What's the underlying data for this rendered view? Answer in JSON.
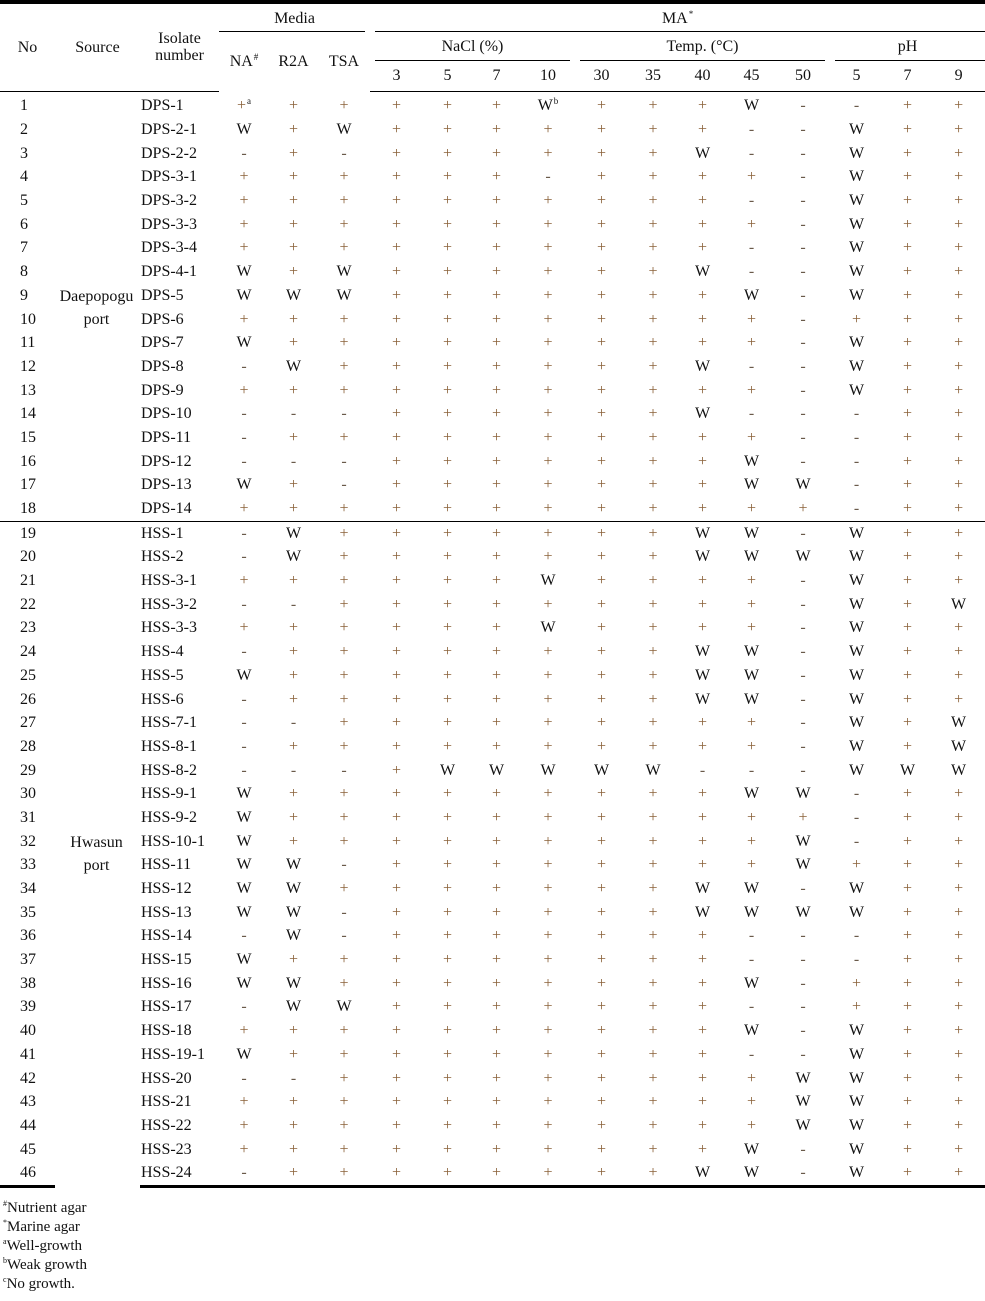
{
  "header": {
    "no": "No",
    "source": "Source",
    "isolate": "Isolate number",
    "media": "Media",
    "media_cols": [
      {
        "label": "NA",
        "sup": "#"
      },
      {
        "label": "R2A",
        "sup": ""
      },
      {
        "label": "TSA",
        "sup": ""
      }
    ],
    "ma": "MA",
    "ma_sup": "*",
    "nacl": "NaCl (%)",
    "nacl_cols": [
      "3",
      "5",
      "7",
      "10"
    ],
    "temp": "Temp. (°C)",
    "temp_cols": [
      "30",
      "35",
      "40",
      "45",
      "50"
    ],
    "ph": "pH",
    "ph_cols": [
      "5",
      "7",
      "9"
    ]
  },
  "groups": [
    {
      "source": [
        "Daepopogu",
        "port"
      ],
      "rows": [
        {
          "no": "1",
          "isolate": "DPS-1",
          "values": [
            "+",
            "+",
            "+",
            "+",
            "+",
            "+",
            "W",
            "+",
            "+",
            "+",
            "W",
            "-",
            "-",
            "+",
            "+"
          ],
          "sup": {
            "0": "a",
            "6": "b"
          }
        },
        {
          "no": "2",
          "isolate": "DPS-2-1",
          "values": [
            "W",
            "+",
            "W",
            "+",
            "+",
            "+",
            "+",
            "+",
            "+",
            "+",
            "-",
            "-",
            "W",
            "+",
            "+"
          ]
        },
        {
          "no": "3",
          "isolate": "DPS-2-2",
          "values": [
            "-",
            "+",
            "-",
            "+",
            "+",
            "+",
            "+",
            "+",
            "+",
            "W",
            "-",
            "-",
            "W",
            "+",
            "+"
          ]
        },
        {
          "no": "4",
          "isolate": "DPS-3-1",
          "values": [
            "+",
            "+",
            "+",
            "+",
            "+",
            "+",
            "-",
            "+",
            "+",
            "+",
            "+",
            "-",
            "W",
            "+",
            "+"
          ]
        },
        {
          "no": "5",
          "isolate": "DPS-3-2",
          "values": [
            "+",
            "+",
            "+",
            "+",
            "+",
            "+",
            "+",
            "+",
            "+",
            "+",
            "-",
            "-",
            "W",
            "+",
            "+"
          ]
        },
        {
          "no": "6",
          "isolate": "DPS-3-3",
          "values": [
            "+",
            "+",
            "+",
            "+",
            "+",
            "+",
            "+",
            "+",
            "+",
            "+",
            "+",
            "-",
            "W",
            "+",
            "+"
          ]
        },
        {
          "no": "7",
          "isolate": "DPS-3-4",
          "values": [
            "+",
            "+",
            "+",
            "+",
            "+",
            "+",
            "+",
            "+",
            "+",
            "+",
            "-",
            "-",
            "W",
            "+",
            "+"
          ]
        },
        {
          "no": "8",
          "isolate": "DPS-4-1",
          "values": [
            "W",
            "+",
            "W",
            "+",
            "+",
            "+",
            "+",
            "+",
            "+",
            "W",
            "-",
            "-",
            "W",
            "+",
            "+"
          ]
        },
        {
          "no": "9",
          "isolate": "DPS-5",
          "values": [
            "W",
            "W",
            "W",
            "+",
            "+",
            "+",
            "+",
            "+",
            "+",
            "+",
            "W",
            "-",
            "W",
            "+",
            "+"
          ]
        },
        {
          "no": "10",
          "isolate": "DPS-6",
          "values": [
            "+",
            "+",
            "+",
            "+",
            "+",
            "+",
            "+",
            "+",
            "+",
            "+",
            "+",
            "-",
            "+",
            "+",
            "+"
          ]
        },
        {
          "no": "11",
          "isolate": "DPS-7",
          "values": [
            "W",
            "+",
            "+",
            "+",
            "+",
            "+",
            "+",
            "+",
            "+",
            "+",
            "+",
            "-",
            "W",
            "+",
            "+"
          ]
        },
        {
          "no": "12",
          "isolate": "DPS-8",
          "values": [
            "-",
            "W",
            "+",
            "+",
            "+",
            "+",
            "+",
            "+",
            "+",
            "W",
            "-",
            "-",
            "W",
            "+",
            "+"
          ]
        },
        {
          "no": "13",
          "isolate": "DPS-9",
          "values": [
            "+",
            "+",
            "+",
            "+",
            "+",
            "+",
            "+",
            "+",
            "+",
            "+",
            "+",
            "-",
            "W",
            "+",
            "+"
          ]
        },
        {
          "no": "14",
          "isolate": "DPS-10",
          "values": [
            "-",
            "-",
            "-",
            "+",
            "+",
            "+",
            "+",
            "+",
            "+",
            "W",
            "-",
            "-",
            "-",
            "+",
            "+"
          ]
        },
        {
          "no": "15",
          "isolate": "DPS-11",
          "values": [
            "-",
            "+",
            "+",
            "+",
            "+",
            "+",
            "+",
            "+",
            "+",
            "+",
            "+",
            "-",
            "-",
            "+",
            "+"
          ]
        },
        {
          "no": "16",
          "isolate": "DPS-12",
          "values": [
            "-",
            "-",
            "-",
            "+",
            "+",
            "+",
            "+",
            "+",
            "+",
            "+",
            "W",
            "-",
            "-",
            "+",
            "+"
          ]
        },
        {
          "no": "17",
          "isolate": "DPS-13",
          "values": [
            "W",
            "+",
            "-",
            "+",
            "+",
            "+",
            "+",
            "+",
            "+",
            "+",
            "W",
            "W",
            "-",
            "+",
            "+"
          ]
        },
        {
          "no": "18",
          "isolate": "DPS-14",
          "values": [
            "+",
            "+",
            "+",
            "+",
            "+",
            "+",
            "+",
            "+",
            "+",
            "+",
            "+",
            "+",
            "-",
            "+",
            "+"
          ]
        }
      ]
    },
    {
      "source": [
        "Hwasun",
        "port"
      ],
      "rows": [
        {
          "no": "19",
          "isolate": "HSS-1",
          "values": [
            "-",
            "W",
            "+",
            "+",
            "+",
            "+",
            "+",
            "+",
            "+",
            "W",
            "W",
            "-",
            "W",
            "+",
            "+"
          ]
        },
        {
          "no": "20",
          "isolate": "HSS-2",
          "values": [
            "-",
            "W",
            "+",
            "+",
            "+",
            "+",
            "+",
            "+",
            "+",
            "W",
            "W",
            "W",
            "W",
            "+",
            "+"
          ]
        },
        {
          "no": "21",
          "isolate": "HSS-3-1",
          "values": [
            "+",
            "+",
            "+",
            "+",
            "+",
            "+",
            "W",
            "+",
            "+",
            "+",
            "+",
            "-",
            "W",
            "+",
            "+"
          ]
        },
        {
          "no": "22",
          "isolate": "HSS-3-2",
          "values": [
            "-",
            "-",
            "+",
            "+",
            "+",
            "+",
            "+",
            "+",
            "+",
            "+",
            "+",
            "-",
            "W",
            "+",
            "W"
          ]
        },
        {
          "no": "23",
          "isolate": "HSS-3-3",
          "values": [
            "+",
            "+",
            "+",
            "+",
            "+",
            "+",
            "W",
            "+",
            "+",
            "+",
            "+",
            "-",
            "W",
            "+",
            "+"
          ]
        },
        {
          "no": "24",
          "isolate": "HSS-4",
          "values": [
            "-",
            "+",
            "+",
            "+",
            "+",
            "+",
            "+",
            "+",
            "+",
            "W",
            "W",
            "-",
            "W",
            "+",
            "+"
          ]
        },
        {
          "no": "25",
          "isolate": "HSS-5",
          "values": [
            "W",
            "+",
            "+",
            "+",
            "+",
            "+",
            "+",
            "+",
            "+",
            "W",
            "W",
            "-",
            "W",
            "+",
            "+"
          ]
        },
        {
          "no": "26",
          "isolate": "HSS-6",
          "values": [
            "-",
            "+",
            "+",
            "+",
            "+",
            "+",
            "+",
            "+",
            "+",
            "W",
            "W",
            "-",
            "W",
            "+",
            "+"
          ]
        },
        {
          "no": "27",
          "isolate": "HSS-7-1",
          "values": [
            "-",
            "-",
            "+",
            "+",
            "+",
            "+",
            "+",
            "+",
            "+",
            "+",
            "+",
            "-",
            "W",
            "+",
            "W"
          ]
        },
        {
          "no": "28",
          "isolate": "HSS-8-1",
          "values": [
            "-",
            "+",
            "+",
            "+",
            "+",
            "+",
            "+",
            "+",
            "+",
            "+",
            "+",
            "-",
            "W",
            "+",
            "W"
          ]
        },
        {
          "no": "29",
          "isolate": "HSS-8-2",
          "values": [
            "-",
            "-",
            "-",
            "+",
            "W",
            "W",
            "W",
            "W",
            "W",
            "-",
            "-",
            "-",
            "W",
            "W",
            "W"
          ]
        },
        {
          "no": "30",
          "isolate": "HSS-9-1",
          "values": [
            "W",
            "+",
            "+",
            "+",
            "+",
            "+",
            "+",
            "+",
            "+",
            "+",
            "W",
            "W",
            "-",
            "+",
            "+"
          ]
        },
        {
          "no": "31",
          "isolate": "HSS-9-2",
          "values": [
            "W",
            "+",
            "+",
            "+",
            "+",
            "+",
            "+",
            "+",
            "+",
            "+",
            "+",
            "+",
            "-",
            "+",
            "+"
          ]
        },
        {
          "no": "32",
          "isolate": "HSS-10-1",
          "values": [
            "W",
            "+",
            "+",
            "+",
            "+",
            "+",
            "+",
            "+",
            "+",
            "+",
            "+",
            "W",
            "-",
            "+",
            "+"
          ]
        },
        {
          "no": "33",
          "isolate": "HSS-11",
          "values": [
            "W",
            "W",
            "-",
            "+",
            "+",
            "+",
            "+",
            "+",
            "+",
            "+",
            "+",
            "W",
            "+",
            "+",
            "+"
          ]
        },
        {
          "no": "34",
          "isolate": "HSS-12",
          "values": [
            "W",
            "W",
            "+",
            "+",
            "+",
            "+",
            "+",
            "+",
            "+",
            "W",
            "W",
            "-",
            "W",
            "+",
            "+"
          ]
        },
        {
          "no": "35",
          "isolate": "HSS-13",
          "values": [
            "W",
            "W",
            "-",
            "+",
            "+",
            "+",
            "+",
            "+",
            "+",
            "W",
            "W",
            "W",
            "W",
            "+",
            "+"
          ]
        },
        {
          "no": "36",
          "isolate": "HSS-14",
          "values": [
            "-",
            "W",
            "-",
            "+",
            "+",
            "+",
            "+",
            "+",
            "+",
            "+",
            "-",
            "-",
            "-",
            "+",
            "+"
          ]
        },
        {
          "no": "37",
          "isolate": "HSS-15",
          "values": [
            "W",
            "+",
            "+",
            "+",
            "+",
            "+",
            "+",
            "+",
            "+",
            "+",
            "-",
            "-",
            "-",
            "+",
            "+"
          ]
        },
        {
          "no": "38",
          "isolate": "HSS-16",
          "values": [
            "W",
            "W",
            "+",
            "+",
            "+",
            "+",
            "+",
            "+",
            "+",
            "+",
            "W",
            "-",
            "+",
            "+",
            "+"
          ]
        },
        {
          "no": "39",
          "isolate": "HSS-17",
          "values": [
            "-",
            "W",
            "W",
            "+",
            "+",
            "+",
            "+",
            "+",
            "+",
            "+",
            "-",
            "-",
            "+",
            "+",
            "+"
          ]
        },
        {
          "no": "40",
          "isolate": "HSS-18",
          "values": [
            "+",
            "+",
            "+",
            "+",
            "+",
            "+",
            "+",
            "+",
            "+",
            "+",
            "W",
            "-",
            "W",
            "+",
            "+"
          ]
        },
        {
          "no": "41",
          "isolate": "HSS-19-1",
          "values": [
            "W",
            "+",
            "+",
            "+",
            "+",
            "+",
            "+",
            "+",
            "+",
            "+",
            "-",
            "-",
            "W",
            "+",
            "+"
          ]
        },
        {
          "no": "42",
          "isolate": "HSS-20",
          "values": [
            "-",
            "-",
            "+",
            "+",
            "+",
            "+",
            "+",
            "+",
            "+",
            "+",
            "+",
            "W",
            "W",
            "+",
            "+"
          ]
        },
        {
          "no": "43",
          "isolate": "HSS-21",
          "values": [
            "+",
            "+",
            "+",
            "+",
            "+",
            "+",
            "+",
            "+",
            "+",
            "+",
            "+",
            "W",
            "W",
            "+",
            "+"
          ]
        },
        {
          "no": "44",
          "isolate": "HSS-22",
          "values": [
            "+",
            "+",
            "+",
            "+",
            "+",
            "+",
            "+",
            "+",
            "+",
            "+",
            "+",
            "W",
            "W",
            "+",
            "+"
          ]
        },
        {
          "no": "45",
          "isolate": "HSS-23",
          "values": [
            "+",
            "+",
            "+",
            "+",
            "+",
            "+",
            "+",
            "+",
            "+",
            "+",
            "W",
            "-",
            "W",
            "+",
            "+"
          ]
        },
        {
          "no": "46",
          "isolate": "HSS-24",
          "values": [
            "-",
            "+",
            "+",
            "+",
            "+",
            "+",
            "+",
            "+",
            "+",
            "W",
            "W",
            "-",
            "W",
            "+",
            "+"
          ]
        }
      ]
    }
  ],
  "footnotes": [
    {
      "mark": "#",
      "text": "Nutrient agar"
    },
    {
      "mark": "*",
      "text": "Marine agar"
    },
    {
      "mark": "a",
      "text": "Well-growth"
    },
    {
      "mark": "b",
      "text": "Weak growth"
    },
    {
      "mark": "c",
      "text": "No growth."
    }
  ],
  "colors": {
    "plus": "#8a6138",
    "text": "#111111",
    "rule": "#000000"
  }
}
